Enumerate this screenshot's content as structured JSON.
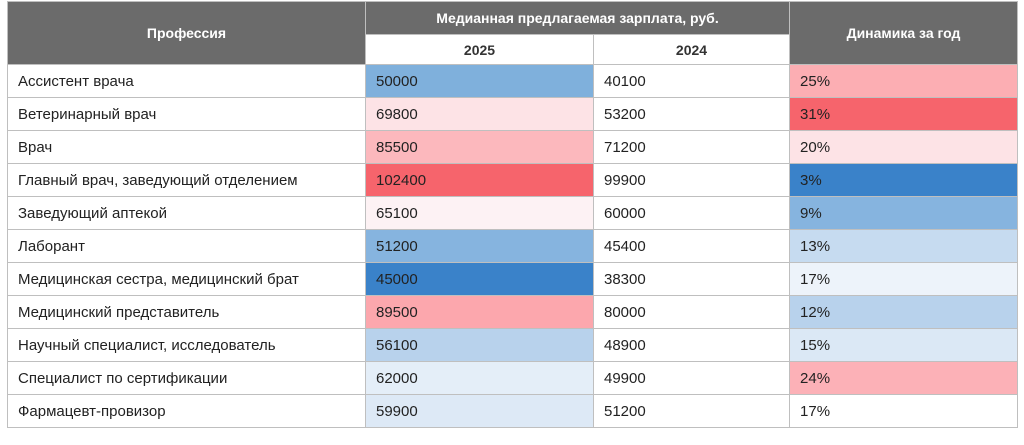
{
  "chart_data": {
    "type": "table",
    "headers": {
      "profession": "Профессия",
      "salary_group": "Медианная предлагаемая зарплата, руб.",
      "year_2025": "2025",
      "year_2024": "2024",
      "dynamics": "Динамика за год"
    },
    "rows": [
      {
        "profession": "Ассистент врача",
        "y2025": 50000,
        "y2024": 40100,
        "dynamics": "25%",
        "c2025": "#7fb0dc",
        "c2024": "#ffffff",
        "cdyn": "#fcaeb3"
      },
      {
        "profession": "Ветеринарный врач",
        "y2025": 69800,
        "y2024": 53200,
        "dynamics": "31%",
        "c2025": "#fde3e6",
        "c2024": "#ffffff",
        "cdyn": "#f6646c"
      },
      {
        "profession": "Врач",
        "y2025": 85500,
        "y2024": 71200,
        "dynamics": "20%",
        "c2025": "#fcb8bd",
        "c2024": "#ffffff",
        "cdyn": "#fde3e6"
      },
      {
        "profession": "Главный врач, заведующий отделением",
        "y2025": 102400,
        "y2024": 99900,
        "dynamics": "3%",
        "c2025": "#f6646c",
        "c2024": "#ffffff",
        "cdyn": "#3a82c9"
      },
      {
        "profession": "Заведующий аптекой",
        "y2025": 65100,
        "y2024": 60000,
        "dynamics": "9%",
        "c2025": "#fdf2f4",
        "c2024": "#ffffff",
        "cdyn": "#86b4df"
      },
      {
        "profession": "Лаборант",
        "y2025": 51200,
        "y2024": 45400,
        "dynamics": "13%",
        "c2025": "#86b4df",
        "c2024": "#ffffff",
        "cdyn": "#c6dbf0"
      },
      {
        "profession": "Медицинская сестра, медицинский брат",
        "y2025": 45000,
        "y2024": 38300,
        "dynamics": "17%",
        "c2025": "#3a82c9",
        "c2024": "#ffffff",
        "cdyn": "#edf3fa"
      },
      {
        "profession": "Медицинский представитель",
        "y2025": 89500,
        "y2024": 80000,
        "dynamics": "12%",
        "c2025": "#fca7ad",
        "c2024": "#ffffff",
        "cdyn": "#b8d2ec"
      },
      {
        "profession": "Научный специалист, исследователь",
        "y2025": 56100,
        "y2024": 48900,
        "dynamics": "15%",
        "c2025": "#b8d2ec",
        "c2024": "#ffffff",
        "cdyn": "#dbe8f5"
      },
      {
        "profession": "Специалист по сертификации",
        "y2025": 62000,
        "y2024": 49900,
        "dynamics": "24%",
        "c2025": "#e4eef8",
        "c2024": "#ffffff",
        "cdyn": "#fcb1b7"
      },
      {
        "profession": "Фармацевт-провизор",
        "y2025": 59900,
        "y2024": 51200,
        "dynamics": "17%",
        "c2025": "#dde9f6",
        "c2024": "#ffffff",
        "cdyn": "#ffffff"
      }
    ]
  }
}
